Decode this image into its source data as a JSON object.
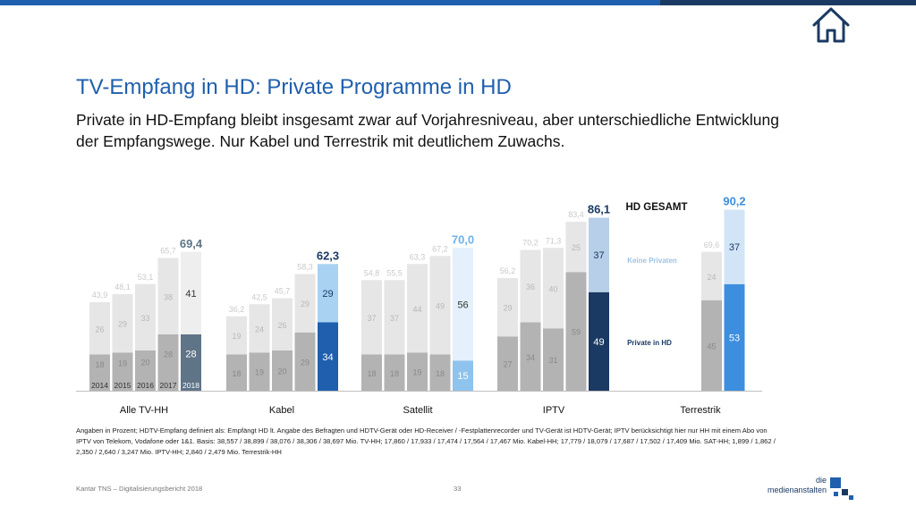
{
  "title": "TV-Empfang in HD: Private Programme in HD",
  "subtitle": "Private in HD-Empfang bleibt insgesamt zwar auf Vorjahresniveau, aber unterschiedliche Entwicklung der Empfangswege. Nur Kabel und Terrestrik mit deutlichem Zuwachs.",
  "footnote": "Angaben in Prozent; HDTV-Empfang definiert als: Empfängt HD lt. Angabe des Befragten und HDTV-Gerät oder HD-Receiver / -Festplattenrecorder und TV-Gerät ist HDTV-Gerät; IPTV berücksichtigt hier nur HH mit einem Abo von IPTV von Telekom, Vodafone oder 1&1. Basis: 38,557 / 38,899 / 38,076 / 38,306 / 38,697 Mio. TV-HH; 17,860 / 17,933 / 17,474 / 17,564 / 17,467 Mio. Kabel-HH; 17,779 / 18,079 / 17,687 / 17,502 / 17,409 Mio. SAT-HH; 1,899 / 1,862 / 2,350 / 2,640 / 3,247 Mio. IPTV-HH; 2,840 / 2,479 Mio. Terrestrik-HH",
  "footer_source": "Kantar TNS – Digitalisierungsbericht 2018",
  "page_number": "33",
  "logo": {
    "line1": "die",
    "line2": "medienanstalten"
  },
  "home_icon": "home-icon",
  "colors": {
    "accent": "#1f5fae",
    "dark": "#1b3a63",
    "old_private": "#b3b3b3",
    "old_nonprivate": "#e6e6e6",
    "old_total": "#c9c9c9",
    "slate": "#5f7487",
    "slate_light": "#eeeeee"
  },
  "chart_data": {
    "type": "bar",
    "stacked": true,
    "years": [
      "2014",
      "2015",
      "2016",
      "2017",
      "2018"
    ],
    "legend": {
      "header": "HD GESAMT",
      "top_label": "Keine Privaten",
      "bottom_label": "Private in HD"
    },
    "groups": [
      {
        "name": "Alle TV-HH",
        "year_labels": true,
        "bars": [
          {
            "year": "2014",
            "private": 18,
            "keine": 26,
            "total": "43,9"
          },
          {
            "year": "2015",
            "private": 19,
            "keine": 29,
            "total": "48,1"
          },
          {
            "year": "2016",
            "private": 20,
            "keine": 33,
            "total": "53,1"
          },
          {
            "year": "2017",
            "private": 28,
            "keine": 38,
            "total": "65,7"
          },
          {
            "year": "2018",
            "private": 28,
            "keine": 41,
            "total": "69,4",
            "highlight": true
          }
        ]
      },
      {
        "name": "Kabel",
        "bars": [
          {
            "year": "2014",
            "private": 18,
            "keine": 19,
            "total": "36,2"
          },
          {
            "year": "2015",
            "private": 19,
            "keine": 24,
            "total": "42,5"
          },
          {
            "year": "2016",
            "private": 20,
            "keine": 26,
            "total": "45,7"
          },
          {
            "year": "2017",
            "private": 29,
            "keine": 29,
            "total": "58,3"
          },
          {
            "year": "2018",
            "private": 34,
            "keine": 29,
            "total": "62,3",
            "highlight": true
          }
        ]
      },
      {
        "name": "Satellit",
        "bars": [
          {
            "year": "2014",
            "private": 18,
            "keine": 37,
            "total": "54,8"
          },
          {
            "year": "2015",
            "private": 18,
            "keine": 37,
            "total": "55,5"
          },
          {
            "year": "2016",
            "private": 19,
            "keine": 44,
            "total": "63,3"
          },
          {
            "year": "2017",
            "private": 18,
            "keine": 49,
            "total": "67,2"
          },
          {
            "year": "2018",
            "private": 15,
            "keine": 56,
            "total": "70,0",
            "highlight": true
          }
        ]
      },
      {
        "name": "IPTV",
        "bars": [
          {
            "year": "2014",
            "private": 27,
            "keine": 29,
            "total": "56,2"
          },
          {
            "year": "2015",
            "private": 34,
            "keine": 36,
            "total": "70,2"
          },
          {
            "year": "2016",
            "private": 31,
            "keine": 40,
            "total": "71,3"
          },
          {
            "year": "2017",
            "private": 59,
            "keine": 25,
            "total": "83,4"
          },
          {
            "year": "2018",
            "private": 49,
            "keine": 37,
            "total": "86,1",
            "highlight": true
          }
        ]
      },
      {
        "name": "Terrestrik",
        "bars": [
          {
            "year": "2017",
            "private": 45,
            "keine": 24,
            "total": "69,6"
          },
          {
            "year": "2018",
            "private": 53,
            "keine": 37,
            "total": "90,2",
            "highlight": true
          }
        ]
      }
    ]
  }
}
